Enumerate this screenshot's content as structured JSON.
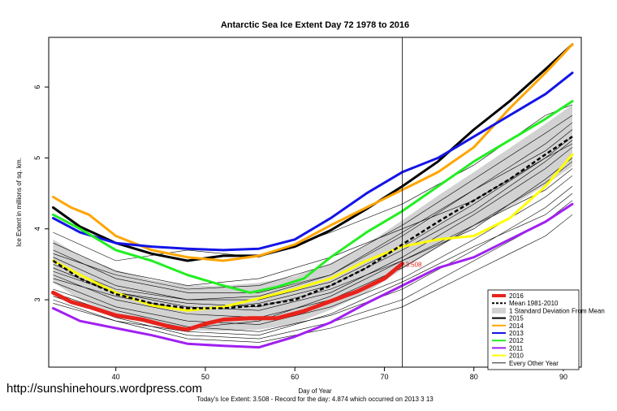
{
  "chart_data": {
    "type": "line",
    "title": "Antarctic Sea Ice Extent Day 72 1978 to 2016",
    "xlabel": "Day of Year",
    "ylabel": "Ice Extent in millions of sq. km.",
    "xlim": [
      32.5,
      92
    ],
    "ylim": [
      2.05,
      6.7
    ],
    "x_ticks": [
      40,
      50,
      60,
      70,
      80,
      90
    ],
    "y_ticks": [
      3,
      4,
      5,
      6
    ],
    "current_day": 72,
    "annotation": "3.508",
    "footer": "Today's Ice Extent: 3.508  -  Record for the day: 4.874 which occurred on 2013 3 13",
    "watermark": "http://sunshinehours.wordpress.com",
    "legend_position": "bottom-right",
    "legend": [
      {
        "label": "2016",
        "color": "#e8231b",
        "style": "thick"
      },
      {
        "label": "Mean 1981-2010",
        "color": "#000000",
        "style": "dashed"
      },
      {
        "label": "1 Standard Deviation From Mean",
        "color": "#d2d2d2",
        "style": "band"
      },
      {
        "label": "2015",
        "color": "#000000",
        "style": "solid"
      },
      {
        "label": "2014",
        "color": "#ffa500",
        "style": "solid"
      },
      {
        "label": "2013",
        "color": "#1414e6",
        "style": "solid"
      },
      {
        "label": "2012",
        "color": "#22ee22",
        "style": "solid"
      },
      {
        "label": "2011",
        "color": "#a020f0",
        "style": "solid"
      },
      {
        "label": "2010",
        "color": "#ffff00",
        "style": "solid"
      },
      {
        "label": "Every Other Year",
        "color": "#000000",
        "style": "thin"
      }
    ],
    "mean": {
      "x": [
        33,
        36,
        40,
        44,
        48,
        52,
        56,
        60,
        64,
        68,
        72,
        76,
        80,
        84,
        88,
        91
      ],
      "y": [
        3.55,
        3.3,
        3.08,
        2.95,
        2.88,
        2.88,
        2.92,
        3.0,
        3.2,
        3.45,
        3.78,
        4.1,
        4.4,
        4.7,
        5.05,
        5.3
      ]
    },
    "sd_band": {
      "x": [
        33,
        36,
        40,
        44,
        48,
        52,
        56,
        60,
        64,
        68,
        72,
        76,
        80,
        84,
        88,
        91
      ],
      "upper": [
        3.85,
        3.62,
        3.42,
        3.28,
        3.2,
        3.2,
        3.24,
        3.33,
        3.52,
        3.78,
        4.12,
        4.47,
        4.8,
        5.14,
        5.48,
        5.75
      ],
      "lower": [
        3.25,
        3.0,
        2.78,
        2.65,
        2.57,
        2.56,
        2.58,
        2.66,
        2.86,
        3.1,
        3.43,
        3.74,
        4.02,
        4.3,
        4.62,
        4.88
      ]
    },
    "series": [
      {
        "name": "2016",
        "color": "#e8231b",
        "width": 5,
        "x": [
          33,
          35,
          37,
          40,
          43,
          46,
          48,
          50,
          52,
          55,
          58,
          61,
          64,
          67,
          70,
          72
        ],
        "y": [
          3.1,
          2.97,
          2.9,
          2.78,
          2.72,
          2.62,
          2.58,
          2.66,
          2.72,
          2.74,
          2.74,
          2.84,
          2.98,
          3.12,
          3.3,
          3.508
        ]
      },
      {
        "name": "2015",
        "color": "#000000",
        "width": 3,
        "x": [
          33,
          36,
          40,
          44,
          48,
          52,
          56,
          60,
          64,
          68,
          72,
          76,
          80,
          84,
          88,
          91
        ],
        "y": [
          4.3,
          4.03,
          3.8,
          3.65,
          3.55,
          3.62,
          3.62,
          3.75,
          3.98,
          4.28,
          4.6,
          4.95,
          5.4,
          5.8,
          6.25,
          6.6
        ]
      },
      {
        "name": "2014",
        "color": "#ffa500",
        "width": 3,
        "x": [
          33,
          35,
          37,
          40,
          44,
          48,
          52,
          56,
          60,
          64,
          68,
          72,
          76,
          80,
          84,
          88,
          91
        ],
        "y": [
          4.45,
          4.3,
          4.2,
          3.9,
          3.7,
          3.6,
          3.55,
          3.62,
          3.78,
          4.05,
          4.3,
          4.55,
          4.8,
          5.15,
          5.7,
          6.2,
          6.6
        ]
      },
      {
        "name": "2013",
        "color": "#1414e6",
        "width": 3,
        "x": [
          33,
          36,
          40,
          44,
          48,
          52,
          56,
          60,
          64,
          68,
          72,
          76,
          80,
          84,
          88,
          91
        ],
        "y": [
          4.15,
          3.95,
          3.8,
          3.75,
          3.72,
          3.7,
          3.72,
          3.85,
          4.15,
          4.5,
          4.8,
          5.0,
          5.3,
          5.6,
          5.9,
          6.2
        ]
      },
      {
        "name": "2012",
        "color": "#22ee22",
        "width": 3,
        "x": [
          33,
          36,
          40,
          44,
          48,
          52,
          55,
          58,
          61,
          64,
          68,
          72,
          76,
          80,
          84,
          88,
          91
        ],
        "y": [
          4.2,
          4.0,
          3.7,
          3.55,
          3.35,
          3.2,
          3.1,
          3.18,
          3.3,
          3.6,
          3.95,
          4.25,
          4.6,
          4.95,
          5.25,
          5.55,
          5.8
        ]
      },
      {
        "name": "2011",
        "color": "#a020f0",
        "width": 3,
        "x": [
          33,
          36,
          40,
          44,
          48,
          52,
          56,
          60,
          64,
          68,
          72,
          76,
          80,
          84,
          88,
          91
        ],
        "y": [
          2.88,
          2.7,
          2.6,
          2.5,
          2.38,
          2.35,
          2.33,
          2.48,
          2.68,
          2.95,
          3.2,
          3.45,
          3.6,
          3.85,
          4.1,
          4.35
        ]
      },
      {
        "name": "2010",
        "color": "#ffff00",
        "width": 3,
        "x": [
          33,
          36,
          40,
          44,
          48,
          52,
          56,
          60,
          64,
          68,
          72,
          76,
          80,
          84,
          88,
          91
        ],
        "y": [
          3.55,
          3.35,
          3.1,
          2.92,
          2.85,
          2.9,
          3.02,
          3.15,
          3.3,
          3.55,
          3.75,
          3.85,
          3.9,
          4.15,
          4.6,
          5.05
        ]
      }
    ],
    "other_years": [
      {
        "x": [
          33,
          40,
          48,
          56,
          64,
          72,
          80,
          88,
          91
        ],
        "y": [
          3.95,
          3.55,
          3.7,
          3.6,
          3.95,
          4.35,
          4.9,
          5.6,
          5.75
        ]
      },
      {
        "x": [
          33,
          40,
          48,
          56,
          64,
          72,
          80,
          88,
          91
        ],
        "y": [
          3.7,
          3.3,
          3.1,
          3.1,
          3.35,
          3.9,
          4.55,
          5.2,
          5.5
        ]
      },
      {
        "x": [
          33,
          40,
          48,
          56,
          64,
          72,
          80,
          88,
          91
        ],
        "y": [
          3.6,
          3.2,
          3.0,
          3.0,
          3.25,
          3.75,
          4.35,
          5.0,
          5.3
        ]
      },
      {
        "x": [
          33,
          40,
          48,
          56,
          64,
          72,
          80,
          88,
          91
        ],
        "y": [
          3.45,
          3.1,
          2.9,
          2.85,
          3.1,
          3.6,
          4.2,
          4.85,
          5.15
        ]
      },
      {
        "x": [
          33,
          40,
          48,
          56,
          64,
          72,
          80,
          88,
          91
        ],
        "y": [
          3.35,
          3.0,
          2.8,
          2.75,
          3.0,
          3.45,
          4.05,
          4.65,
          4.95
        ]
      },
      {
        "x": [
          33,
          40,
          48,
          56,
          64,
          72,
          80,
          88,
          91
        ],
        "y": [
          3.25,
          2.9,
          2.7,
          2.65,
          2.9,
          3.3,
          3.85,
          4.45,
          4.75
        ]
      },
      {
        "x": [
          33,
          40,
          48,
          56,
          64,
          72,
          80,
          88,
          91
        ],
        "y": [
          3.15,
          2.85,
          2.62,
          2.55,
          2.78,
          3.15,
          3.7,
          4.3,
          4.6
        ]
      },
      {
        "x": [
          33,
          40,
          48,
          56,
          64,
          72,
          80,
          88,
          91
        ],
        "y": [
          3.05,
          2.75,
          2.5,
          2.45,
          2.68,
          3.0,
          3.55,
          4.1,
          4.4
        ]
      },
      {
        "x": [
          33,
          40,
          48,
          56,
          64,
          72,
          80,
          88,
          91
        ],
        "y": [
          2.95,
          2.7,
          2.45,
          2.4,
          2.6,
          2.9,
          3.4,
          3.9,
          4.2
        ]
      },
      {
        "x": [
          33,
          40,
          48,
          56,
          64,
          72,
          80,
          88,
          91
        ],
        "y": [
          3.5,
          3.15,
          3.0,
          3.05,
          3.35,
          3.95,
          4.55,
          5.1,
          5.4
        ]
      },
      {
        "x": [
          33,
          40,
          48,
          56,
          64,
          72,
          80,
          88,
          91
        ],
        "y": [
          3.3,
          3.05,
          2.85,
          2.95,
          3.2,
          3.7,
          4.25,
          4.95,
          5.25
        ]
      },
      {
        "x": [
          33,
          40,
          48,
          56,
          64,
          72,
          80,
          88,
          91
        ],
        "y": [
          3.1,
          2.8,
          2.6,
          2.7,
          3.05,
          3.55,
          4.05,
          4.55,
          4.85
        ]
      },
      {
        "x": [
          33,
          40,
          48,
          56,
          64,
          72,
          80,
          88,
          91
        ],
        "y": [
          3.8,
          3.4,
          3.2,
          3.3,
          3.6,
          4.0,
          4.4,
          5.0,
          5.2
        ]
      },
      {
        "x": [
          33,
          40,
          48,
          56,
          64,
          72,
          80,
          88,
          91
        ],
        "y": [
          3.0,
          2.7,
          2.55,
          2.5,
          2.8,
          3.25,
          3.75,
          4.2,
          4.5
        ]
      },
      {
        "x": [
          33,
          40,
          48,
          56,
          64,
          72,
          80,
          88,
          91
        ],
        "y": [
          3.65,
          3.35,
          3.15,
          3.2,
          3.5,
          4.05,
          4.7,
          5.35,
          5.6
        ]
      },
      {
        "x": [
          33,
          40,
          48,
          56,
          64,
          72,
          80,
          88,
          91
        ],
        "y": [
          3.4,
          3.1,
          2.95,
          2.9,
          3.15,
          3.55,
          4.0,
          4.7,
          5.0
        ]
      }
    ]
  }
}
